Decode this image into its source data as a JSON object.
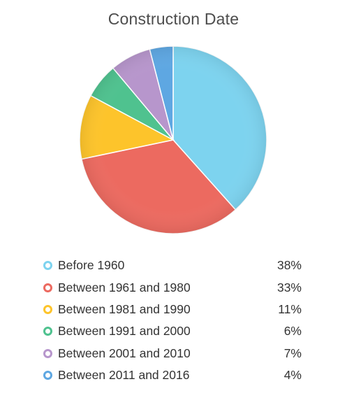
{
  "title": "Construction Date",
  "chart_data": {
    "type": "pie",
    "title": "Construction Date",
    "categories": [
      "Before 1960",
      "Between 1961 and 1980",
      "Between 1981 and 1990",
      "Between 1991 and 2000",
      "Between 2001 and 2010",
      "Between 2011 and 2016"
    ],
    "values": [
      38,
      33,
      11,
      6,
      7,
      4
    ],
    "value_labels": [
      "38%",
      "33%",
      "11%",
      "6%",
      "7%",
      "4%"
    ],
    "colors": [
      "#7dd3ef",
      "#ec6a60",
      "#fdc42b",
      "#4fc28f",
      "#b796cc",
      "#5ea7e2"
    ],
    "legend_placement": "bottom"
  }
}
